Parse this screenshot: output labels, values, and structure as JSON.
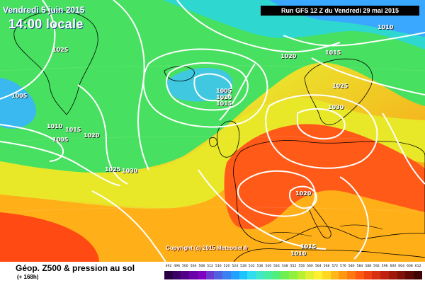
{
  "header": {
    "date": "Vendredi 5 juin 2015",
    "time": "14:00 locale",
    "run": "Run GFS 12 Z du Vendredi 29 mai 2015"
  },
  "footer": {
    "title": "Géop. Z500 & pression au sol",
    "subtitle": "(+ 168h)",
    "copyright": "Copyright (c) 2015 Meteociel.fr"
  },
  "isobar_labels": [
    "1025",
    "1005",
    "1010",
    "1015",
    "1005",
    "1020",
    "1025",
    "1030",
    "1005",
    "1010",
    "1015",
    "1020",
    "1015",
    "1010",
    "1025",
    "1030",
    "1020",
    "1015",
    "1010"
  ],
  "scale": {
    "labels": [
      "492",
      "496",
      "500",
      "504",
      "508",
      "512",
      "516",
      "520",
      "524",
      "528",
      "532",
      "536",
      "540",
      "544",
      "548",
      "552",
      "556",
      "560",
      "564",
      "568",
      "572",
      "576",
      "580",
      "584",
      "588",
      "592",
      "596",
      "600",
      "604",
      "608",
      "612"
    ],
    "colors": [
      "#2a0044",
      "#3a0066",
      "#520088",
      "#6a00a8",
      "#8000c0",
      "#6c3ad0",
      "#5060e0",
      "#3a80f0",
      "#20a0ff",
      "#1cc4ff",
      "#30dcf0",
      "#40e8c8",
      "#48eea0",
      "#50f078",
      "#70f050",
      "#90f040",
      "#b8f030",
      "#e0f030",
      "#fff030",
      "#ffd820",
      "#ffb818",
      "#ff9810",
      "#ff7810",
      "#ff5810",
      "#f04010",
      "#d83010",
      "#c02010",
      "#a01808",
      "#801008",
      "#600804",
      "#400404"
    ],
    "sea_color": "#2ad0ee"
  }
}
